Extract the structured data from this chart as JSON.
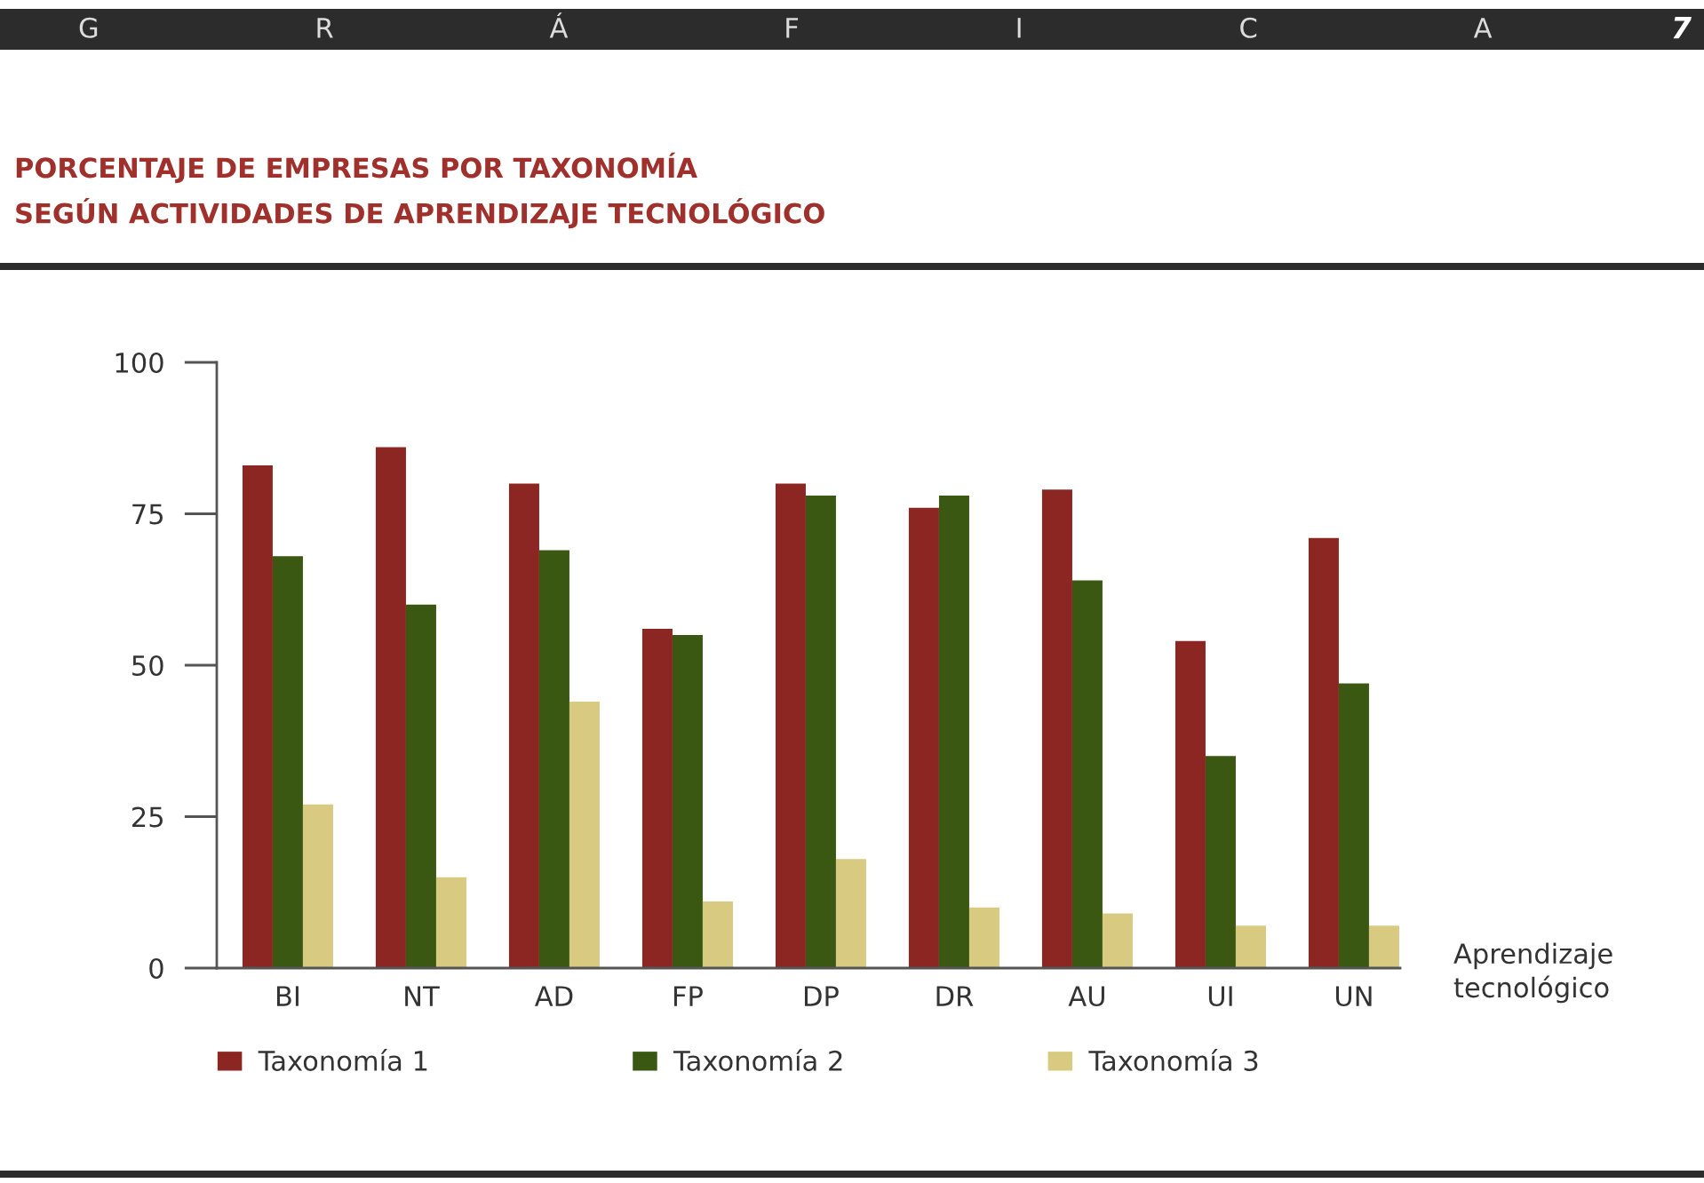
{
  "chart_data": {
    "type": "bar",
    "title": "PORCENTAJE DE EMPRESAS POR TAXONOMÍA\nSEGÚN ACTIVIDADES DE APRENDIZAJE TECNOLÓGICO",
    "annotations": [
      "G R Á F I C A",
      "7"
    ],
    "xlabel": "Aprendizaje\ntecnológico",
    "categories": [
      "BI",
      "NT",
      "AD",
      "FP",
      "DP",
      "DR",
      "AU",
      "UI",
      "UN"
    ],
    "series": [
      {
        "name": "Taxonomía 1",
        "color": "#8c2622",
        "values": [
          83,
          86,
          80,
          56,
          80,
          76,
          79,
          54,
          71
        ]
      },
      {
        "name": "Taxonomía 2",
        "color": "#3b5812",
        "values": [
          68,
          60,
          69,
          55,
          78,
          78,
          64,
          35,
          47
        ]
      },
      {
        "name": "Taxonomía 3",
        "color": "#d8ca80",
        "values": [
          27,
          15,
          44,
          11,
          18,
          10,
          9,
          7,
          7
        ]
      }
    ],
    "ylim": [
      0,
      100
    ],
    "yticks": [
      0,
      25,
      50,
      75,
      100
    ],
    "legend": "bottom"
  }
}
